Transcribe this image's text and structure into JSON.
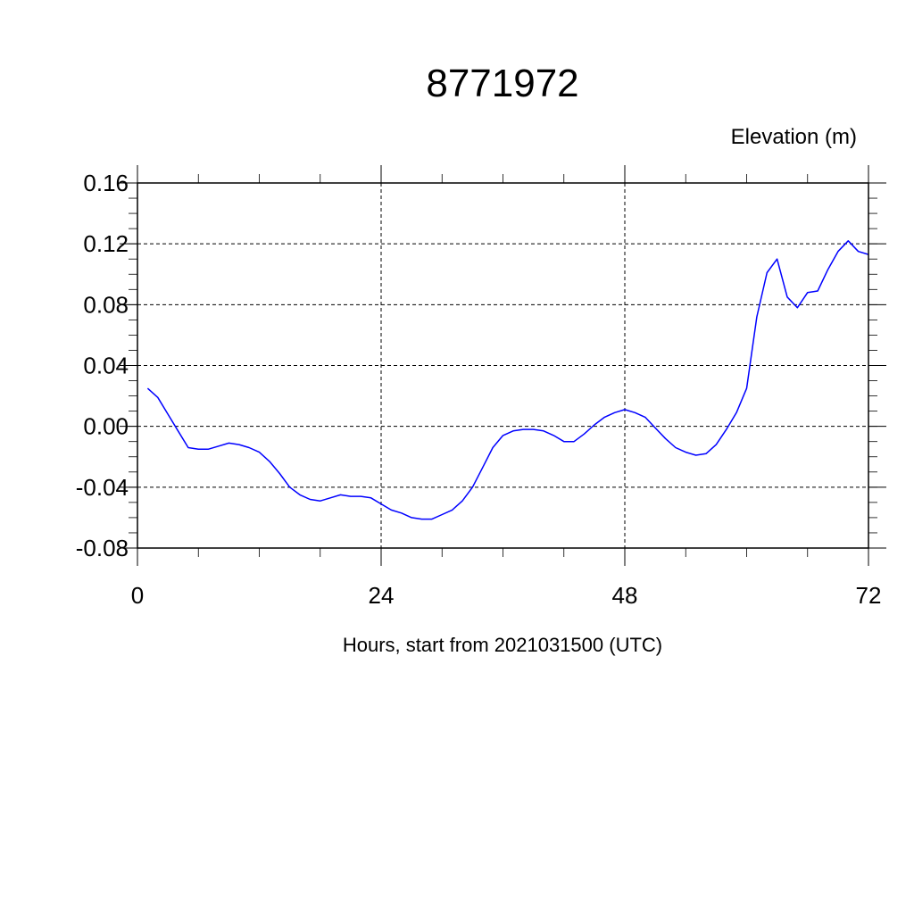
{
  "chart_data": {
    "type": "line",
    "title": "8771972",
    "ylabel": "Elevation (m)",
    "xlabel": "Hours, start from 2021031500 (UTC)",
    "xlim": [
      0,
      72
    ],
    "ylim": [
      -0.08,
      0.16
    ],
    "x_ticks": [
      0,
      24,
      48,
      72
    ],
    "x_tick_labels": [
      "0",
      "24",
      "48",
      "72"
    ],
    "y_ticks": [
      -0.08,
      -0.04,
      0.0,
      0.04,
      0.08,
      0.12,
      0.16
    ],
    "y_tick_labels": [
      "-0.08",
      "-0.04",
      "0.00",
      "0.04",
      "0.08",
      "0.12",
      "0.16"
    ],
    "grid": true,
    "line_color": "#0000ff",
    "series": [
      {
        "x": [
          1,
          2,
          3,
          4,
          5,
          6,
          7,
          8,
          9,
          10,
          11,
          12,
          13,
          14,
          15,
          16,
          17,
          18,
          19,
          20,
          21,
          22,
          23,
          24,
          25,
          26,
          27,
          28,
          29,
          30,
          31,
          32,
          33,
          34,
          35,
          36,
          37,
          38,
          39,
          40,
          41,
          42,
          43,
          44,
          45,
          46,
          47,
          48,
          49,
          50,
          51,
          52,
          53,
          54,
          55,
          56,
          57,
          58,
          59,
          60,
          61,
          62,
          63,
          64,
          65,
          66,
          67,
          68,
          69,
          70,
          71,
          72
        ],
        "values": [
          0.025,
          0.019,
          0.008,
          -0.003,
          -0.014,
          -0.015,
          -0.015,
          -0.013,
          -0.011,
          -0.012,
          -0.014,
          -0.017,
          -0.023,
          -0.031,
          -0.04,
          -0.045,
          -0.048,
          -0.049,
          -0.047,
          -0.045,
          -0.046,
          -0.046,
          -0.047,
          -0.051,
          -0.055,
          -0.057,
          -0.06,
          -0.061,
          -0.061,
          -0.058,
          -0.055,
          -0.049,
          -0.04,
          -0.027,
          -0.014,
          -0.006,
          -0.003,
          -0.002,
          -0.002,
          -0.003,
          -0.006,
          -0.01,
          -0.01,
          -0.005,
          0.001,
          0.006,
          0.009,
          0.011,
          0.009,
          0.006,
          -0.001,
          -0.008,
          -0.014,
          -0.017,
          -0.019,
          -0.018,
          -0.012,
          -0.002,
          0.009,
          0.025,
          0.072,
          0.101,
          0.11,
          0.085,
          0.078,
          0.088,
          0.089,
          0.103,
          0.115,
          0.122,
          0.115,
          0.113
        ]
      }
    ]
  }
}
